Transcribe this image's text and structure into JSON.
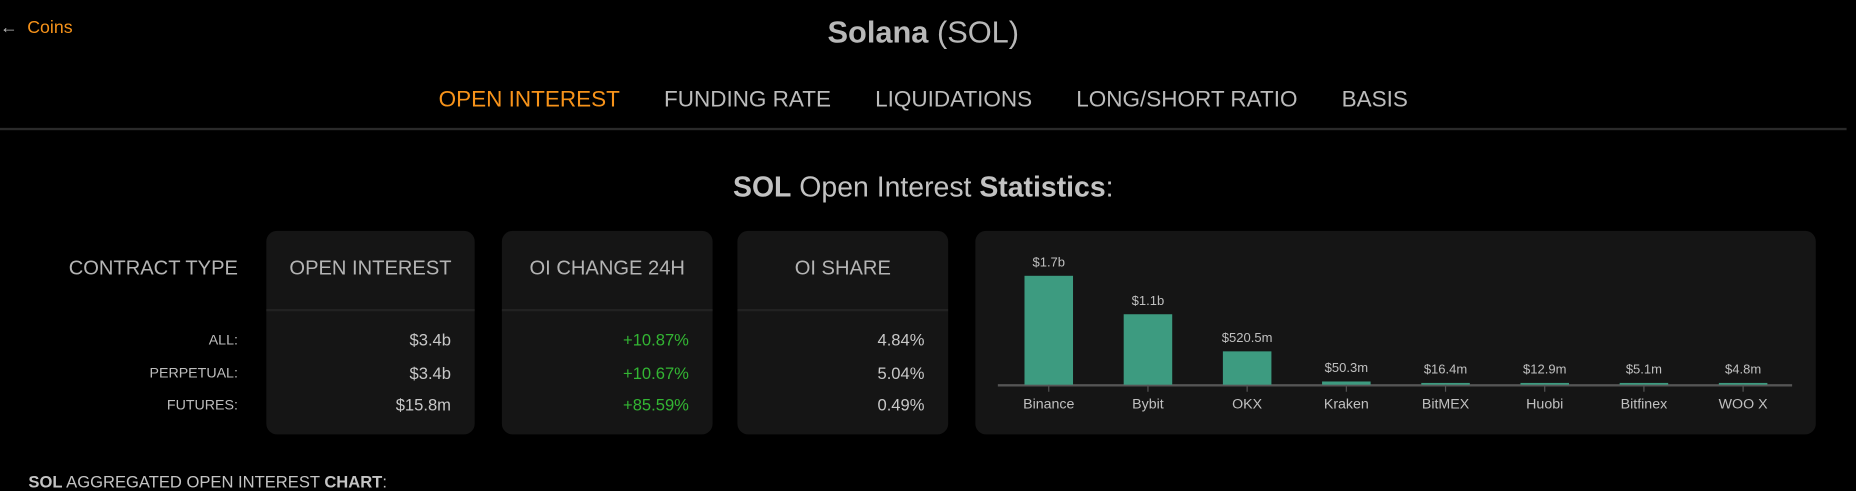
{
  "nav": {
    "back_label": "Coins",
    "back_icon": "arrow-left-icon"
  },
  "header": {
    "name": "Solana",
    "symbol": "(SOL)"
  },
  "tabs": [
    {
      "label": "OPEN INTEREST",
      "active": true
    },
    {
      "label": "FUNDING RATE",
      "active": false
    },
    {
      "label": "LIQUIDATIONS",
      "active": false
    },
    {
      "label": "LONG/SHORT RATIO",
      "active": false
    },
    {
      "label": "BASIS",
      "active": false
    }
  ],
  "stats": {
    "title_bold": "SOL",
    "title_mid": " Open Interest ",
    "title_bold2": "Statistics",
    "title_end": ":",
    "contract_type_label": "CONTRACT TYPE",
    "rows": [
      "ALL:",
      "PERPETUAL:",
      "FUTURES:"
    ],
    "columns": [
      {
        "header": "OPEN INTEREST",
        "values": [
          "$3.4b",
          "$3.4b",
          "$15.8m"
        ],
        "positive": false
      },
      {
        "header": "OI CHANGE 24H",
        "values": [
          "+10.87%",
          "+10.67%",
          "+85.59%"
        ],
        "positive": true
      },
      {
        "header": "OI SHARE",
        "values": [
          "4.84%",
          "5.04%",
          "0.49%"
        ],
        "positive": false
      }
    ]
  },
  "chart_data": {
    "type": "bar",
    "categories": [
      "Binance",
      "Bybit",
      "OKX",
      "Kraken",
      "BitMEX",
      "Huobi",
      "Bitfinex",
      "WOO X"
    ],
    "values": [
      1700000000,
      1100000000,
      520500000,
      50300000,
      16400000,
      12900000,
      5100000,
      4800000
    ],
    "data_labels": [
      "$1.7b",
      "$1.1b",
      "$520.5m",
      "$50.3m",
      "$16.4m",
      "$12.9m",
      "$5.1m",
      "$4.8m"
    ],
    "bar_color": "#3d9b80",
    "grid": false
  },
  "footer": {
    "bold1": "SOL",
    "mid": " AGGREGATED OPEN INTEREST ",
    "bold2": "CHART",
    "end": ":"
  },
  "colors": {
    "accent": "#f7931a",
    "positive": "#33b533",
    "card": "#151515",
    "background": "#000000"
  }
}
